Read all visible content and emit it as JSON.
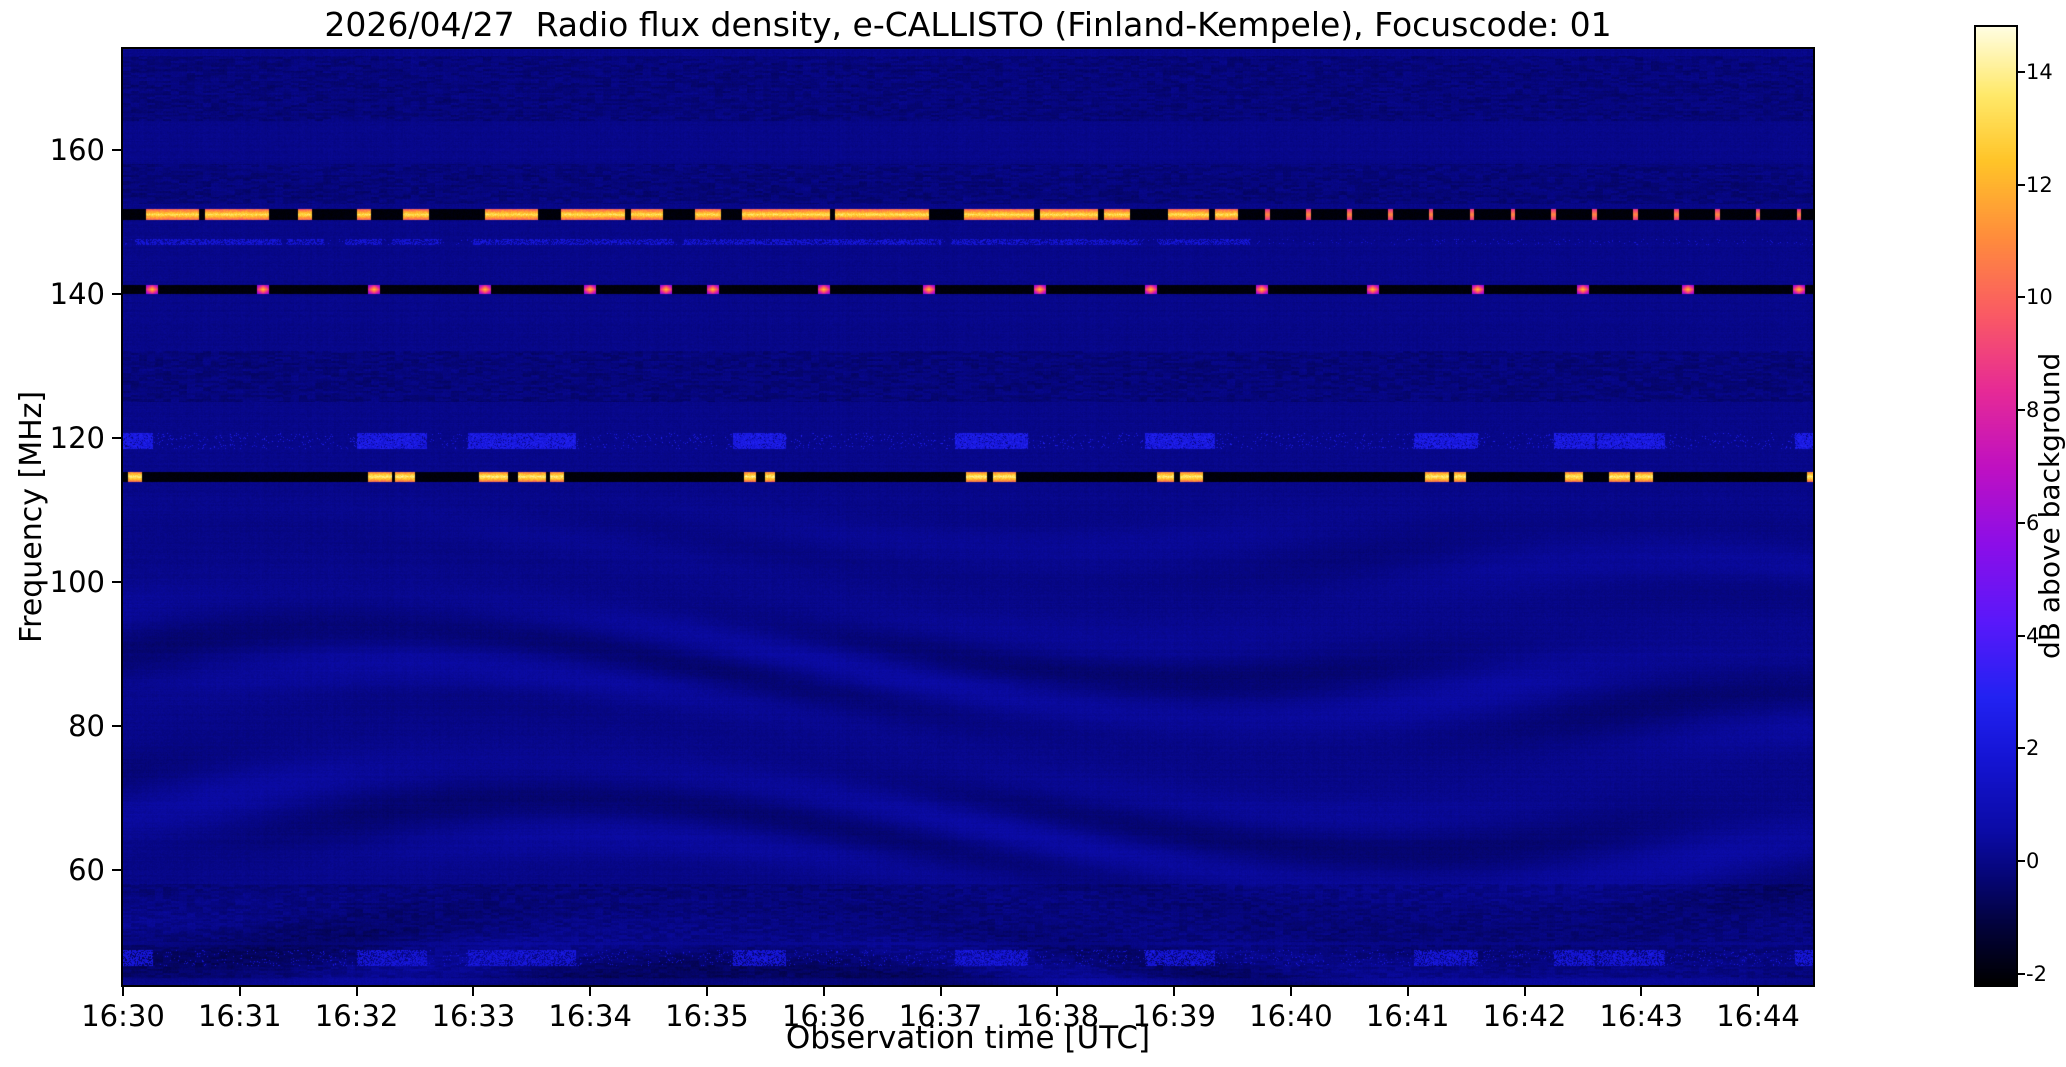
{
  "title": "2026/04/27  Radio flux density, e-CALLISTO (Finland-Kempele), Focuscode: 01",
  "axes": {
    "x": {
      "label": "Observation time [UTC]",
      "tick_labels": [
        "16:30",
        "16:31",
        "16:32",
        "16:33",
        "16:34",
        "16:35",
        "16:36",
        "16:37",
        "16:38",
        "16:39",
        "16:40",
        "16:41",
        "16:42",
        "16:43",
        "16:44"
      ],
      "tick_minutes": [
        0,
        1,
        2,
        3,
        4,
        5,
        6,
        7,
        8,
        9,
        10,
        11,
        12,
        13,
        14
      ],
      "range_minutes": [
        0,
        14.47
      ]
    },
    "y": {
      "label": "Frequency [MHz]",
      "tick_values": [
        160,
        140,
        120,
        100,
        80,
        60
      ],
      "range_mhz": [
        44,
        174
      ]
    }
  },
  "colorbar": {
    "label": "dB above background",
    "ticks": [
      14,
      12,
      10,
      8,
      6,
      4,
      2,
      0,
      -2
    ],
    "range": [
      -2.2,
      14.8
    ],
    "stops": [
      [
        0.0,
        "#000000"
      ],
      [
        0.06,
        "#02023a"
      ],
      [
        0.12,
        "#06067e"
      ],
      [
        0.16,
        "#0b0ba6"
      ],
      [
        0.24,
        "#1515d6"
      ],
      [
        0.3,
        "#2222f2"
      ],
      [
        0.38,
        "#5a18fa"
      ],
      [
        0.46,
        "#8c0ee8"
      ],
      [
        0.54,
        "#bf10c2"
      ],
      [
        0.62,
        "#e62a96"
      ],
      [
        0.7,
        "#fa5a64"
      ],
      [
        0.78,
        "#ff8c3c"
      ],
      [
        0.86,
        "#ffc428"
      ],
      [
        0.93,
        "#ffe96a"
      ],
      [
        1.0,
        "#fffde0"
      ]
    ]
  },
  "chart_data": {
    "type": "heatmap",
    "title": "2026/04/27  Radio flux density, e-CALLISTO (Finland-Kempele), Focuscode: 01",
    "xlabel": "Observation time [UTC]",
    "ylabel": "Frequency [MHz]",
    "x_start_utc": "16:30",
    "duration_minutes": 14.47,
    "ylim_mhz": [
      44,
      174
    ],
    "colorbar_label": "dB above background",
    "colorbar_range_db": [
      -2.2,
      14.8
    ],
    "background_level_db": 0.3,
    "features": {
      "bands": [
        {
          "name": "intermittent-emission-151MHz",
          "freq_mhz": 151.0,
          "width_mhz": 1.5,
          "base_db": -1.9,
          "bright_db": 14.0,
          "segments_min": [
            [
              0.2,
              0.65
            ],
            [
              0.7,
              1.25
            ],
            [
              1.5,
              1.62
            ],
            [
              2.0,
              2.12
            ],
            [
              2.4,
              2.62
            ],
            [
              3.1,
              3.55
            ],
            [
              3.75,
              4.3
            ],
            [
              4.35,
              4.62
            ],
            [
              4.9,
              5.12
            ],
            [
              5.3,
              6.05
            ],
            [
              6.1,
              6.9
            ],
            [
              7.2,
              7.8
            ],
            [
              7.85,
              8.35
            ],
            [
              8.4,
              8.62
            ],
            [
              8.95,
              9.3
            ],
            [
              9.35,
              9.55
            ]
          ],
          "dot_times_min": [
            9.8,
            10.15,
            10.5,
            10.85,
            11.2,
            11.55,
            11.9,
            12.25,
            12.6,
            12.95,
            13.3,
            13.65,
            14.0,
            14.35
          ]
        },
        {
          "name": "periodic-beacon-140.6MHz",
          "freq_mhz": 140.6,
          "width_mhz": 1.2,
          "base_db": -1.9,
          "bright_db": 12.5,
          "burst_times_min": [
            0.25,
            1.2,
            2.15,
            3.1,
            4.0,
            4.65,
            5.05,
            6.0,
            6.9,
            7.85,
            8.8,
            9.75,
            10.7,
            11.6,
            12.5,
            13.4,
            14.35
          ],
          "burst_halfwidth_min": 0.05
        },
        {
          "name": "burst-clusters-114.6MHz",
          "freq_mhz": 114.6,
          "width_mhz": 1.4,
          "base_db": -1.9,
          "bright_db": 14.5,
          "segments_min": [
            [
              0.04,
              0.16
            ],
            [
              2.1,
              2.3
            ],
            [
              2.33,
              2.5
            ],
            [
              3.05,
              3.3
            ],
            [
              3.38,
              3.62
            ],
            [
              3.66,
              3.78
            ],
            [
              5.32,
              5.42
            ],
            [
              5.5,
              5.58
            ],
            [
              7.22,
              7.4
            ],
            [
              7.45,
              7.65
            ],
            [
              8.85,
              9.0
            ],
            [
              9.05,
              9.25
            ],
            [
              11.15,
              11.35
            ],
            [
              11.4,
              11.5
            ],
            [
              12.35,
              12.5
            ],
            [
              12.72,
              12.9
            ],
            [
              12.95,
              13.1
            ],
            [
              14.42,
              14.52
            ]
          ]
        }
      ],
      "speckle_rows": [
        {
          "name": "speckle-147MHz",
          "freq_mhz": 147.2,
          "width_mhz": 0.9,
          "linked_band": 0,
          "density": 0.3,
          "db": [
            1.2,
            3.5
          ]
        },
        {
          "name": "speckle-119.6MHz",
          "freq_mhz": 119.6,
          "width_mhz": 2.2,
          "linked_band": 2,
          "density": 0.45,
          "db": [
            1.5,
            4.5
          ]
        },
        {
          "name": "speckle-47.8MHz",
          "freq_mhz": 47.8,
          "width_mhz": 2.2,
          "linked_band": 2,
          "density": 0.35,
          "db": [
            1.2,
            3.8
          ]
        }
      ],
      "noisy_rows_mhz": [
        [
          164,
          173
        ],
        [
          152.5,
          158
        ],
        [
          125,
          132
        ],
        [
          50,
          58
        ],
        [
          45,
          49.5
        ]
      ]
    }
  }
}
